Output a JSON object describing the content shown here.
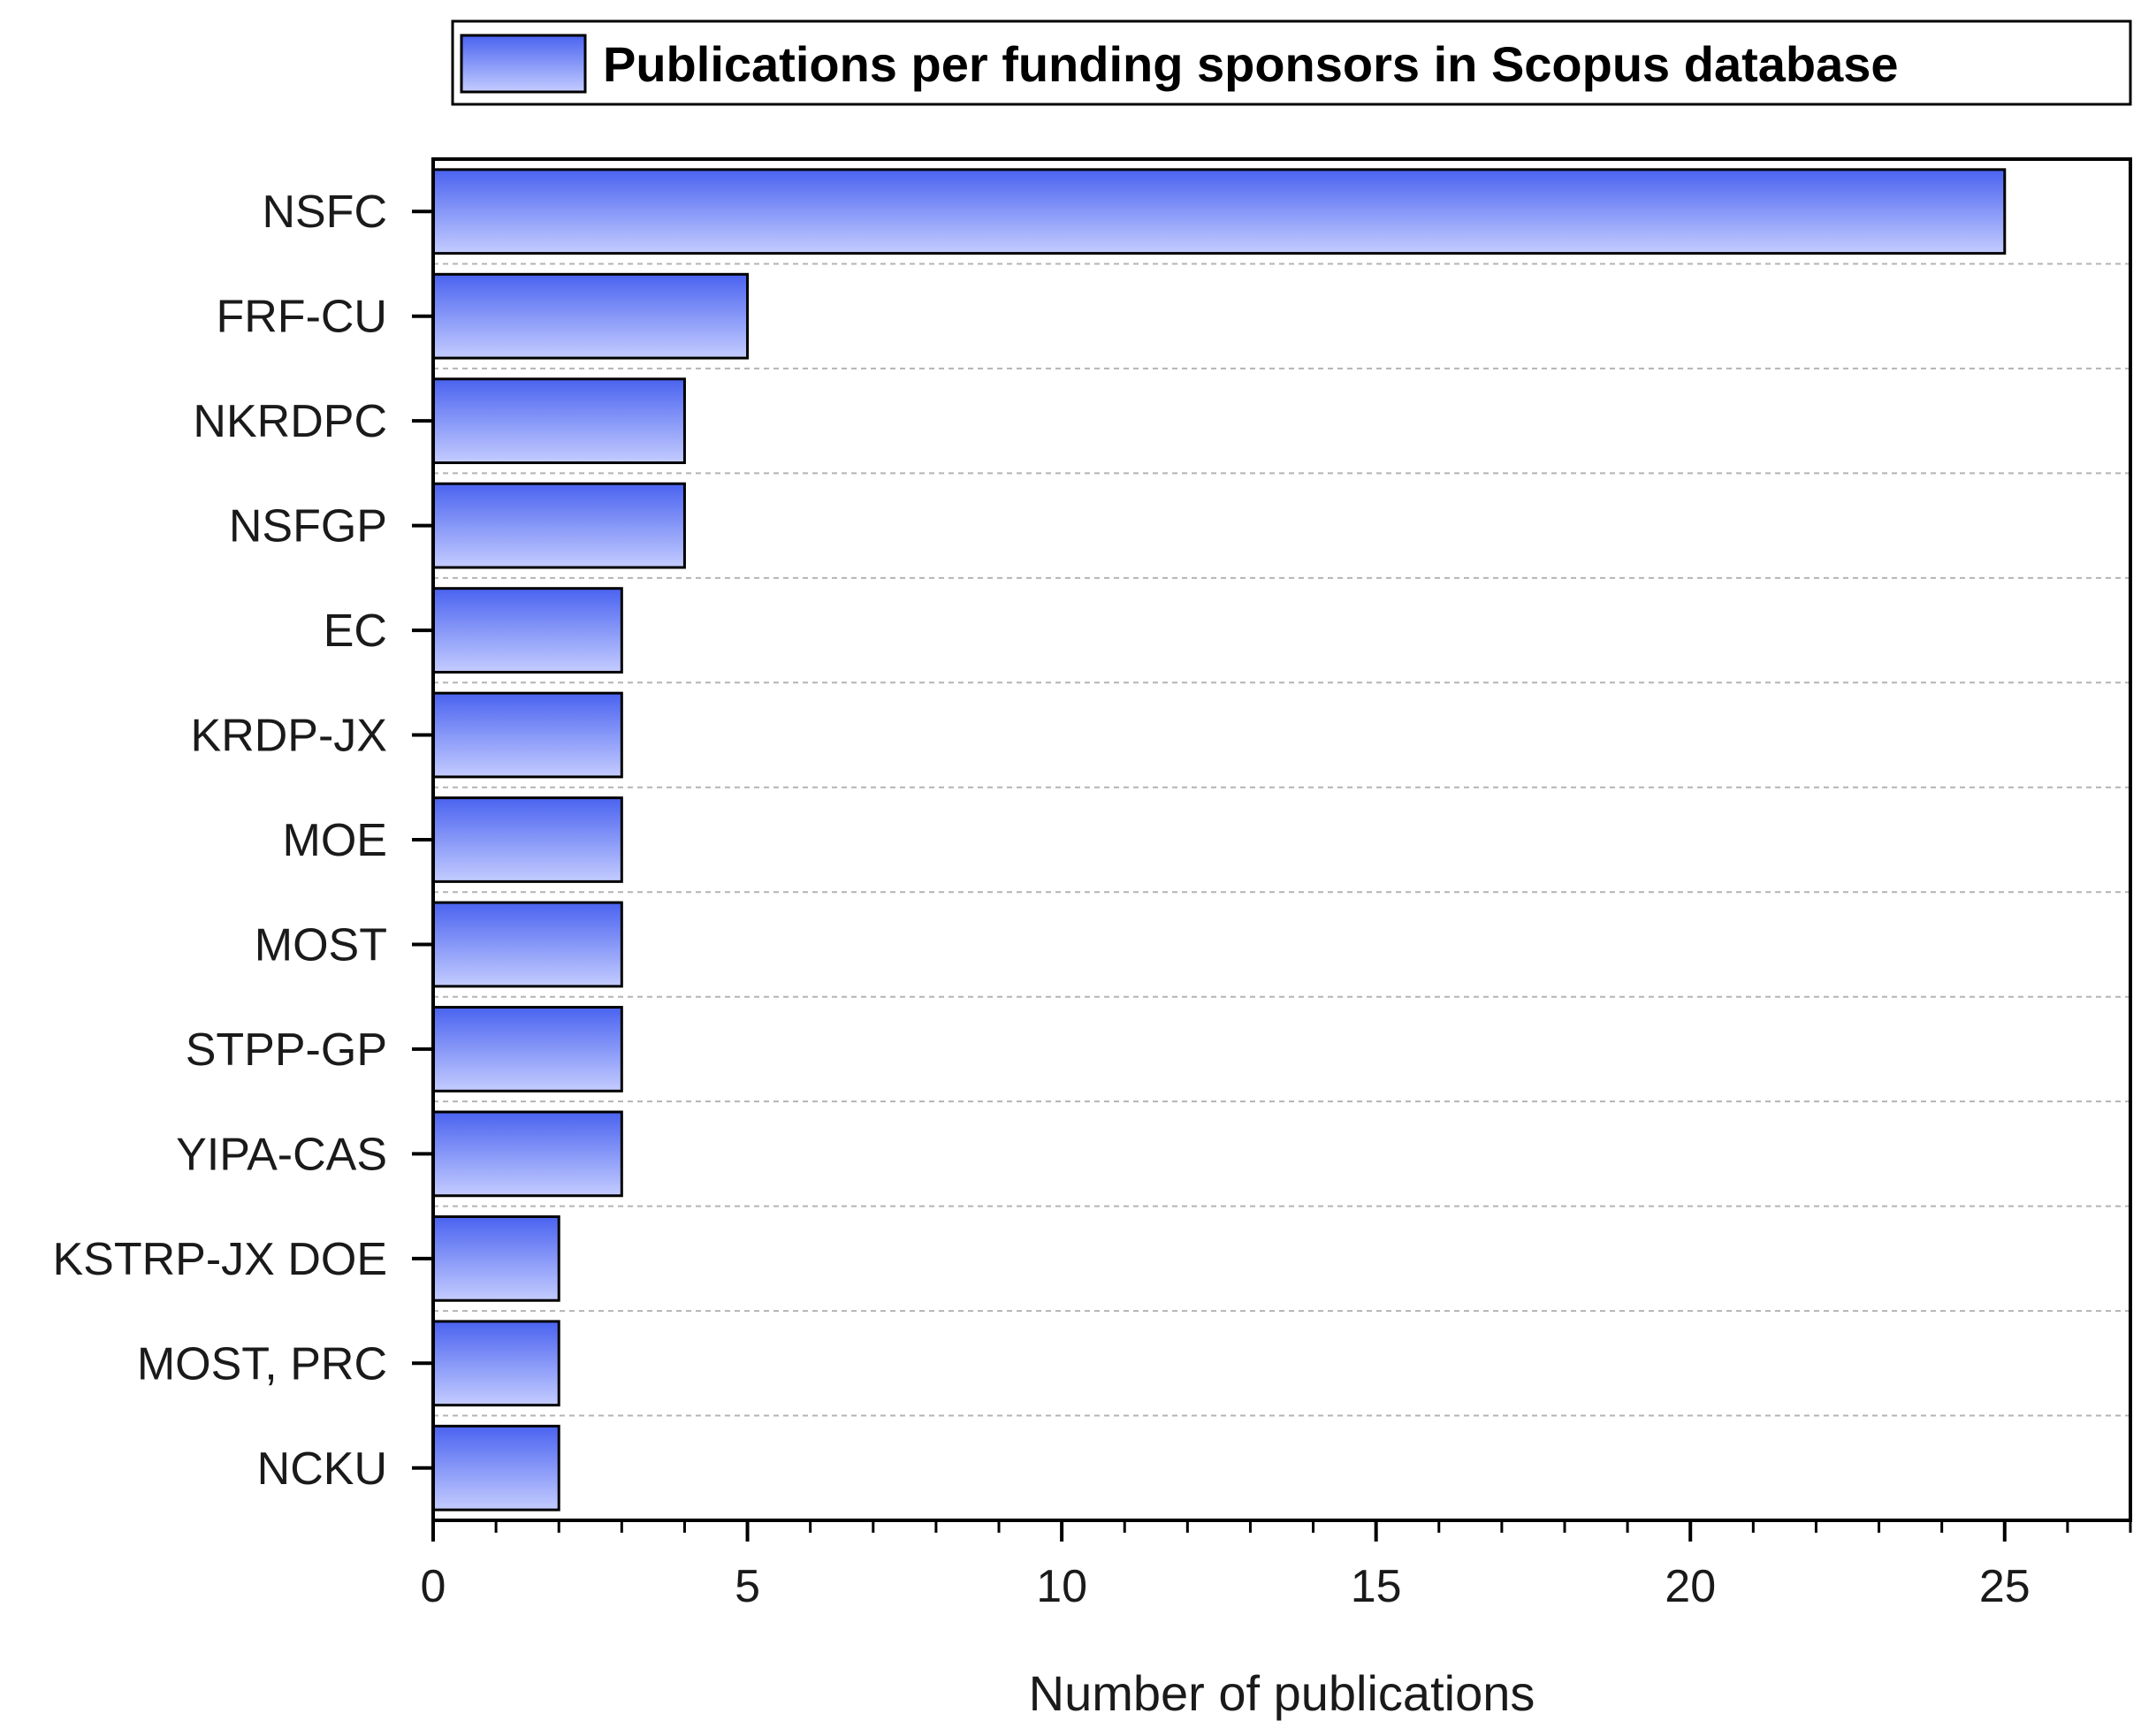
{
  "chart_data": {
    "type": "bar",
    "orientation": "horizontal",
    "categories": [
      "NSFC",
      "FRF-CU",
      "NKRDPC",
      "NSFGP",
      "EC",
      "KRDP-JX",
      "MOE",
      "MOST",
      "STPP-GP",
      "YIPA-CAS",
      "KSTRP-JX DOE",
      "MOST, PRC",
      "NCKU"
    ],
    "series": [
      {
        "name": "Publications per funding sponsors in Scopus database",
        "values": [
          25,
          5,
          4,
          4,
          3,
          3,
          3,
          3,
          3,
          3,
          2,
          2,
          2
        ]
      }
    ],
    "xlabel": "Number of publications",
    "ylabel": "",
    "xlim": [
      0,
      27
    ],
    "xticks": [
      0,
      5,
      10,
      15,
      20,
      25
    ],
    "grid": "horizontal dashed",
    "legend_position": "top-right",
    "colors": {
      "bar_top": "#4a63f0",
      "bar_bottom": "#c4ccff",
      "bar_stroke": "#000000",
      "grid": "#b4b4b4",
      "legend_border": "#000000"
    }
  }
}
